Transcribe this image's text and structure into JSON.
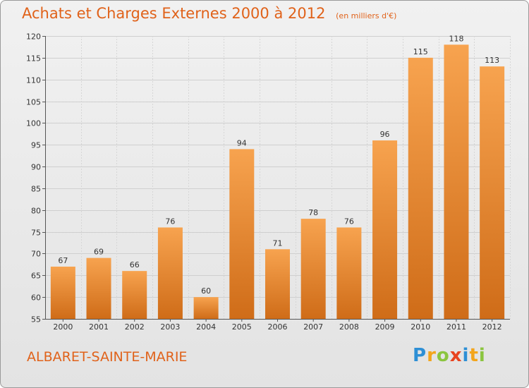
{
  "title": "Achats et Charges Externes 2000 à 2012",
  "subtitle": "(en milliers d'€)",
  "town": "ALBARET-SAINTE-MARIE",
  "logo": {
    "letters": [
      "P",
      "r",
      "o",
      "x",
      "i",
      "t",
      "i"
    ],
    "colors": [
      "#2d8fd5",
      "#f3a51c",
      "#8bc53f",
      "#e8431f",
      "#2d8fd5",
      "#f3a51c",
      "#8bc53f"
    ]
  },
  "colors": {
    "bar_light": "#f7a34f",
    "bar_dark": "#cf6c18",
    "title": "#e0621a"
  },
  "chart_data": {
    "type": "bar",
    "categories": [
      "2000",
      "2001",
      "2002",
      "2003",
      "2004",
      "2005",
      "2006",
      "2007",
      "2008",
      "2009",
      "2010",
      "2011",
      "2012"
    ],
    "values": [
      67,
      69,
      66,
      76,
      60,
      94,
      71,
      78,
      76,
      96,
      115,
      118,
      113
    ],
    "ylim": [
      55,
      120
    ],
    "yticks": [
      55,
      60,
      65,
      70,
      75,
      80,
      85,
      90,
      95,
      100,
      105,
      110,
      115,
      120
    ],
    "grid": true,
    "data_labels": true
  }
}
